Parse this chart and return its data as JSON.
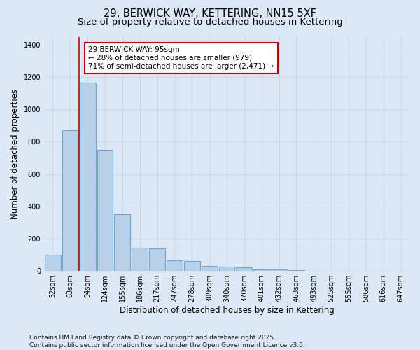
{
  "title_line1": "29, BERWICK WAY, KETTERING, NN15 5XF",
  "title_line2": "Size of property relative to detached houses in Kettering",
  "xlabel": "Distribution of detached houses by size in Kettering",
  "ylabel": "Number of detached properties",
  "categories": [
    "32sqm",
    "63sqm",
    "94sqm",
    "124sqm",
    "155sqm",
    "186sqm",
    "217sqm",
    "247sqm",
    "278sqm",
    "309sqm",
    "340sqm",
    "370sqm",
    "401sqm",
    "432sqm",
    "463sqm",
    "493sqm",
    "525sqm",
    "555sqm",
    "586sqm",
    "616sqm",
    "647sqm"
  ],
  "values": [
    100,
    870,
    1165,
    750,
    350,
    145,
    140,
    65,
    60,
    30,
    25,
    20,
    10,
    8,
    5,
    2,
    1,
    0,
    0,
    0,
    0
  ],
  "bar_color": "#b8d0e8",
  "bar_edge_color": "#6aaad4",
  "background_color": "#dce8f5",
  "grid_color": "#c8d8ec",
  "annotation_text": "29 BERWICK WAY: 95sqm\n← 28% of detached houses are smaller (979)\n71% of semi-detached houses are larger (2,471) →",
  "annotation_box_color": "#ffffff",
  "annotation_box_edge": "#cc0000",
  "vline_color": "#cc0000",
  "ylim": [
    0,
    1450
  ],
  "yticks": [
    0,
    200,
    400,
    600,
    800,
    1000,
    1200,
    1400
  ],
  "footer": "Contains HM Land Registry data © Crown copyright and database right 2025.\nContains public sector information licensed under the Open Government Licence v3.0.",
  "title_fontsize": 10.5,
  "subtitle_fontsize": 9.5,
  "tick_fontsize": 7,
  "ylabel_fontsize": 8.5,
  "xlabel_fontsize": 8.5,
  "footer_fontsize": 6.5,
  "annotation_fontsize": 7.5
}
